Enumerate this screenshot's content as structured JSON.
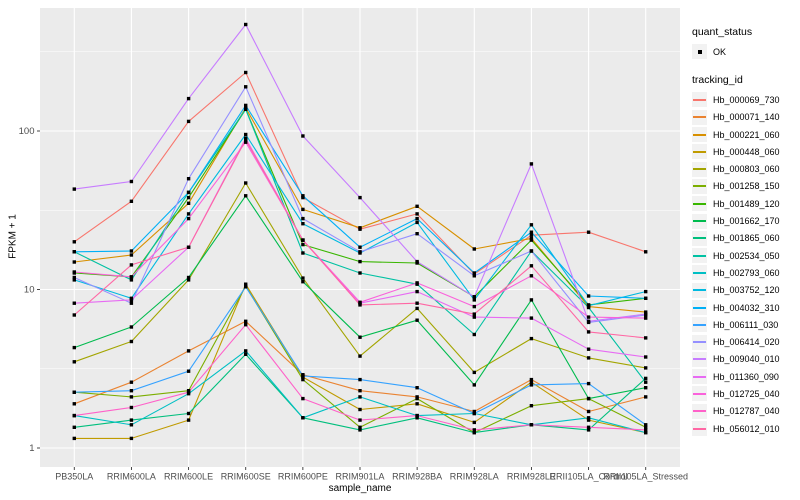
{
  "chart_data": {
    "type": "line",
    "title": "",
    "xlabel": "sample_name",
    "ylabel": "FPKM + 1",
    "y_scale": "log10",
    "y_ticks": [
      1,
      10,
      100
    ],
    "y_minor_ticks": [
      3.1623,
      31.623,
      316.23
    ],
    "grid": true,
    "legend_position": "right",
    "panel_bg": "#EBEBEB",
    "grid_color": "#FFFFFF",
    "tick_color": "#333333",
    "tick_label_color": "#4D4D4D",
    "point_color": "#000000",
    "point_shape": "filled-square",
    "x_categories": [
      "PB350LA",
      "RRIM600LA",
      "RRIM600LE",
      "RRIM600SE",
      "RRIM600PE",
      "RRIM901LA",
      "RRIM928BA",
      "RRIM928LA",
      "RRIM928LE",
      "RRII105LA_Control",
      "RRII105LA_Stressed"
    ],
    "series": [
      {
        "name": "Hb_000069_730",
        "color": "#F8766D",
        "values": [
          20,
          36,
          115,
          234,
          38,
          24,
          30,
          12.5,
          22,
          23,
          17.3
        ]
      },
      {
        "name": "Hb_000071_140",
        "color": "#EA8331",
        "values": [
          1.9,
          2.6,
          4.1,
          6.3,
          2.9,
          2.3,
          2.1,
          1.7,
          2.7,
          1.7,
          2.1
        ]
      },
      {
        "name": "Hb_000221_060",
        "color": "#D89000",
        "values": [
          14.9,
          16.5,
          35,
          140,
          32,
          24.5,
          33.5,
          18,
          21,
          7.8,
          7.2
        ]
      },
      {
        "name": "Hb_000448_060",
        "color": "#C09B00",
        "values": [
          1.15,
          1.15,
          1.5,
          10.8,
          2.8,
          1.75,
          1.9,
          1.45,
          2.6,
          1.5,
          1.25
        ]
      },
      {
        "name": "Hb_000803_060",
        "color": "#A3A500",
        "values": [
          3.5,
          4.7,
          11.5,
          47,
          11.8,
          3.8,
          7.6,
          3.0,
          4.9,
          3.7,
          3.2
        ]
      },
      {
        "name": "Hb_001258_150",
        "color": "#7CAE00",
        "values": [
          2.25,
          2.1,
          2.3,
          10.5,
          2.7,
          1.35,
          2.05,
          1.25,
          1.85,
          2.05,
          1.35
        ]
      },
      {
        "name": "Hb_001489_120",
        "color": "#39B600",
        "values": [
          12.7,
          12.0,
          38,
          137,
          19.2,
          15.0,
          14.7,
          9.0,
          20.5,
          8.0,
          8.8
        ]
      },
      {
        "name": "Hb_001662_170",
        "color": "#00BB4E",
        "values": [
          4.3,
          5.8,
          11.9,
          39,
          11.2,
          5.0,
          6.4,
          2.5,
          8.6,
          2.05,
          2.4
        ]
      },
      {
        "name": "Hb_001865_060",
        "color": "#00BF7D",
        "values": [
          1.35,
          1.5,
          1.65,
          3.9,
          1.55,
          1.3,
          1.55,
          1.25,
          1.4,
          1.3,
          2.75
        ]
      },
      {
        "name": "Hb_002534_050",
        "color": "#00C1A3",
        "values": [
          17.3,
          11.5,
          41,
          137,
          17.0,
          12.7,
          10.8,
          5.2,
          17.5,
          7.7,
          2.6
        ]
      },
      {
        "name": "Hb_002793_060",
        "color": "#00BFC4",
        "values": [
          1.6,
          1.4,
          2.2,
          4.1,
          1.55,
          2.1,
          1.6,
          1.65,
          1.4,
          1.55,
          1.25
        ]
      },
      {
        "name": "Hb_003752_120",
        "color": "#00BAE0",
        "values": [
          11.5,
          8.8,
          30,
          95,
          26,
          17.0,
          26.5,
          8.6,
          25.6,
          7.9,
          9.7
        ]
      },
      {
        "name": "Hb_004032_310",
        "color": "#00B0F6",
        "values": [
          17.3,
          17.5,
          41,
          145,
          39,
          18.5,
          28,
          12.7,
          23,
          9.1,
          8.8
        ]
      },
      {
        "name": "Hb_006111_030",
        "color": "#35A2FF",
        "values": [
          2.25,
          2.3,
          3.05,
          10.4,
          2.85,
          2.7,
          2.4,
          1.65,
          2.5,
          2.55,
          1.4
        ]
      },
      {
        "name": "Hb_006414_020",
        "color": "#9590FF",
        "values": [
          11.9,
          8.2,
          50,
          190,
          28,
          17.3,
          22.5,
          12.2,
          17.5,
          6.2,
          6.9
        ]
      },
      {
        "name": "Hb_009040_010",
        "color": "#C77CFF",
        "values": [
          43,
          48,
          160,
          470,
          93,
          38,
          15.0,
          9.0,
          62,
          6.3,
          7.0
        ]
      },
      {
        "name": "Hb_011360_090",
        "color": "#E76BF3",
        "values": [
          8.2,
          8.6,
          18.5,
          90,
          20.5,
          8.2,
          9.7,
          6.7,
          6.6,
          4.2,
          3.75
        ]
      },
      {
        "name": "Hb_012725_040",
        "color": "#FA62DB",
        "values": [
          12.9,
          12.0,
          28,
          85,
          20.5,
          8.3,
          11.0,
          7.8,
          12.2,
          6.7,
          6.6
        ]
      },
      {
        "name": "Hb_012787_040",
        "color": "#FF61C9",
        "values": [
          1.6,
          1.8,
          2.25,
          6.0,
          2.05,
          1.5,
          1.6,
          1.3,
          1.4,
          1.35,
          1.3
        ]
      },
      {
        "name": "Hb_056012_010",
        "color": "#FF67A4",
        "values": [
          6.9,
          14.3,
          18.5,
          88,
          20.5,
          8.0,
          8.2,
          7.0,
          14.1,
          5.4,
          4.95
        ]
      }
    ]
  },
  "legend": {
    "quant_status": {
      "title": "quant_status",
      "items": [
        {
          "label": "OK",
          "symbol": "black-square-point"
        }
      ]
    },
    "tracking_id": {
      "title": "tracking_id"
    }
  }
}
